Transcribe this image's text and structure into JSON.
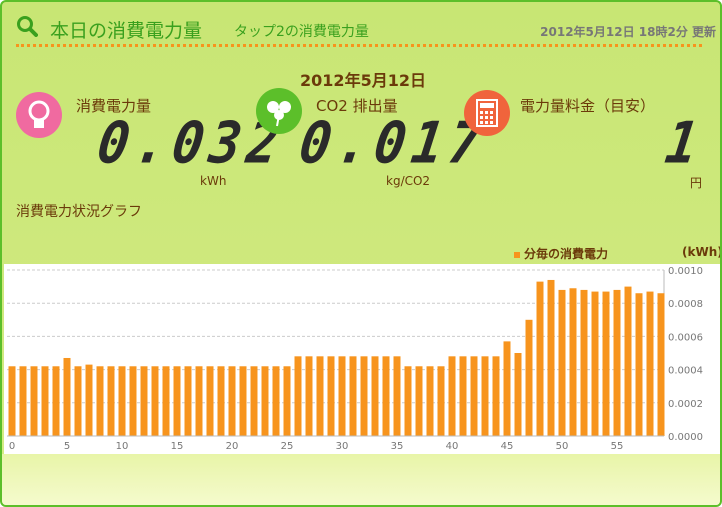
{
  "header": {
    "title": "本日の消費電力量",
    "subtitle": "タップ2の消費電力量",
    "updated": "2012年5月12日 18時2分 更新"
  },
  "date": "2012年5月12日",
  "metrics": [
    {
      "label": "消費電力量",
      "value": "0.032",
      "unit": "kWh",
      "icon": "lightbulb-icon",
      "color": "#f06aa0"
    },
    {
      "label": "CO2 排出量",
      "value": "0.017",
      "unit": "kg/CO2",
      "icon": "clover-icon",
      "color": "#5cbf2a"
    },
    {
      "label": "電力量料金（目安）",
      "value": "1",
      "unit": "円",
      "icon": "calculator-icon",
      "color": "#f0643c"
    }
  ],
  "graph_title": "消費電力状況グラフ",
  "chart_data": {
    "type": "bar",
    "legend": "分毎の消費電力",
    "ylabel": "(kWh)",
    "ylim": [
      0,
      0.001
    ],
    "yticks": [
      "0.0000",
      "0.0002",
      "0.0004",
      "0.0006",
      "0.0008",
      "0.0010"
    ],
    "xticks": [
      "0",
      "5",
      "10",
      "15",
      "20",
      "25",
      "30",
      "35",
      "40",
      "45",
      "50",
      "55"
    ],
    "color": "#f7941d",
    "x": [
      0,
      1,
      2,
      3,
      4,
      5,
      6,
      7,
      8,
      9,
      10,
      11,
      12,
      13,
      14,
      15,
      16,
      17,
      18,
      19,
      20,
      21,
      22,
      23,
      24,
      25,
      26,
      27,
      28,
      29,
      30,
      31,
      32,
      33,
      34,
      35,
      36,
      37,
      38,
      39,
      40,
      41,
      42,
      43,
      44,
      45,
      46,
      47,
      48,
      49,
      50,
      51,
      52,
      53,
      54,
      55,
      56,
      57,
      58,
      59
    ],
    "values": [
      0.00042,
      0.00042,
      0.00042,
      0.00042,
      0.00042,
      0.00047,
      0.00042,
      0.00043,
      0.00042,
      0.00042,
      0.00042,
      0.00042,
      0.00042,
      0.00042,
      0.00042,
      0.00042,
      0.00042,
      0.00042,
      0.00042,
      0.00042,
      0.00042,
      0.00042,
      0.00042,
      0.00042,
      0.00042,
      0.00042,
      0.00048,
      0.00048,
      0.00048,
      0.00048,
      0.00048,
      0.00048,
      0.00048,
      0.00048,
      0.00048,
      0.00048,
      0.00042,
      0.00042,
      0.00042,
      0.00042,
      0.00048,
      0.00048,
      0.00048,
      0.00048,
      0.00048,
      0.00057,
      0.0005,
      0.0007,
      0.00093,
      0.00094,
      0.00088,
      0.00089,
      0.00088,
      0.00087,
      0.00087,
      0.00088,
      0.0009,
      0.00086,
      0.00087,
      0.00086
    ]
  }
}
